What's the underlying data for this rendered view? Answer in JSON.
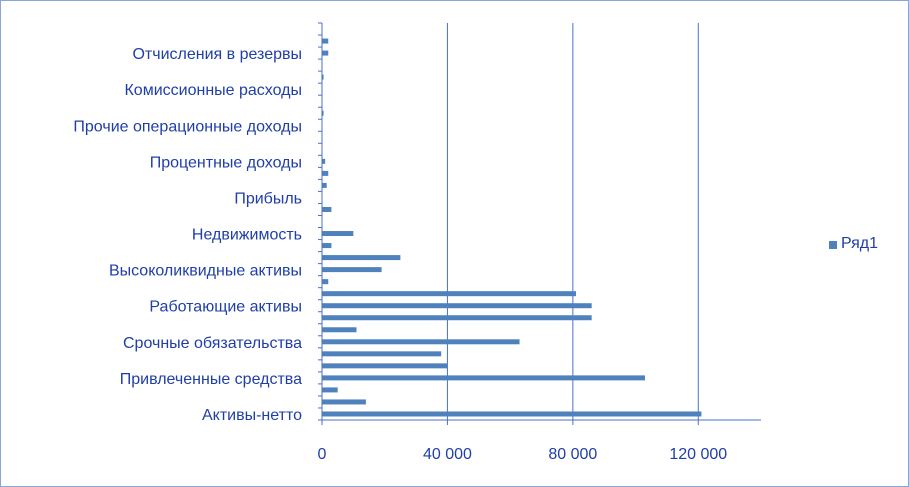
{
  "chart_data": {
    "type": "bar",
    "orientation": "horizontal",
    "categories": [
      "Активы-нетто",
      "",
      "",
      "Привлеченные средства",
      "",
      "",
      "Срочные обязательства",
      "",
      "",
      "Работающие активы",
      "",
      "",
      "Высоколиквидные активы",
      "",
      "",
      "Недвижимость",
      "",
      "",
      "Прибыль",
      "",
      "",
      "Процентные доходы",
      "",
      "",
      "Прочие операционные доходы",
      "",
      "",
      "Комиссионные расходы",
      "",
      "",
      "Отчисления в резервы",
      "",
      ""
    ],
    "series": [
      {
        "name": "Ряд1",
        "values": [
          121000,
          14000,
          5000,
          103000,
          40000,
          38000,
          63000,
          11000,
          86000,
          86000,
          81000,
          2000,
          19000,
          25000,
          3000,
          10000,
          0,
          3000,
          0,
          1500,
          2000,
          1000,
          0,
          0,
          0,
          500,
          0,
          0,
          500,
          0,
          2000,
          2000,
          0
        ]
      }
    ],
    "xlim": [
      0,
      140000
    ],
    "xticks": [
      0,
      40000,
      80000,
      120000
    ],
    "xtick_labels": [
      "0",
      "40 000",
      "80 000",
      "120 000"
    ],
    "grid": "vertical",
    "legend": "right",
    "colors": {
      "bar": "#4f81bd",
      "grid": "#4a6fd0",
      "axis": "#4a6fd0",
      "text": "#1f3ea8"
    }
  }
}
